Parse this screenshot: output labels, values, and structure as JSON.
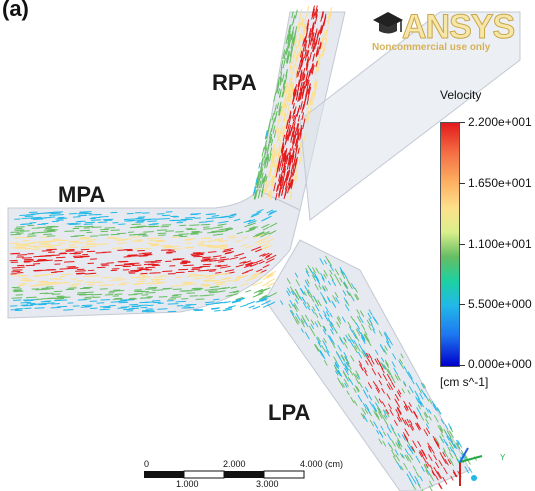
{
  "panel_label": "(a)",
  "logo": {
    "name": "ANSYS",
    "subtitle": "Noncommercial use only",
    "icon": "graduation-cap-icon"
  },
  "vessels": {
    "rpa": "RPA",
    "mpa": "MPA",
    "lpa": "LPA"
  },
  "legend": {
    "title": "Velocity",
    "ticks": [
      "2.200e+001",
      "1.650e+001",
      "1.100e+001",
      "5.500e+000",
      "0.000e+000"
    ],
    "unit": "[cm s^-1]",
    "colors": [
      "#e31a1c",
      "#fee08b",
      "#66bd63",
      "#22b8e8",
      "#0000cc"
    ]
  },
  "scale_bar": {
    "top_labels": [
      "0",
      "2.000",
      "4.000 (cm)"
    ],
    "bottom_labels": [
      "1.000",
      "3.000"
    ]
  },
  "axes_triad": {
    "y_label": "Y"
  }
}
